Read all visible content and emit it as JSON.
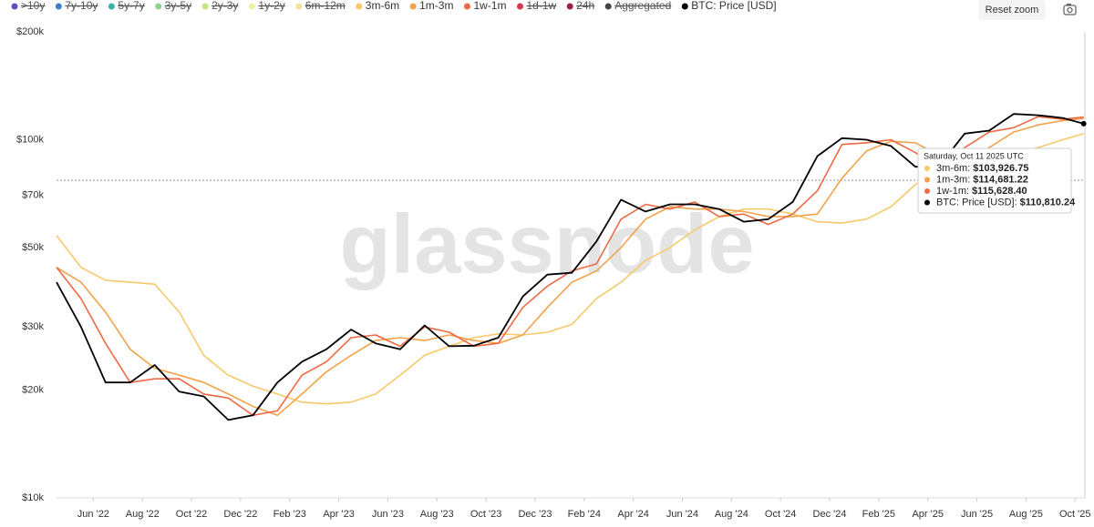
{
  "reset_zoom": "Reset zoom",
  "watermark": "glassnode",
  "chart_data": {
    "type": "line",
    "log_scale": true,
    "grid": false,
    "x": [
      3.5,
      4.5,
      5.5,
      6.5,
      7.5,
      8.5,
      9.5,
      10.5,
      11.5,
      12.5,
      13.5,
      14.5,
      15.5,
      16.5,
      17.5,
      18.5,
      19.5,
      20.5,
      21.5,
      22.5,
      23.5,
      24.5,
      25.5,
      26.5,
      27.5,
      28.5,
      29.5,
      30.5,
      31.5,
      32.5,
      33.5,
      34.5,
      35.5,
      36.5,
      37.5,
      38.5,
      39.5,
      40.5,
      41.5,
      42.5,
      43.5,
      44.5,
      45.35
    ],
    "xlim": [
      3.5,
      45.4
    ],
    "xticks": [
      {
        "value": 5,
        "label": "Jun '22"
      },
      {
        "value": 7,
        "label": "Aug '22"
      },
      {
        "value": 9,
        "label": "Oct '22"
      },
      {
        "value": 11,
        "label": "Dec '22"
      },
      {
        "value": 13,
        "label": "Feb '23"
      },
      {
        "value": 15,
        "label": "Apr '23"
      },
      {
        "value": 17,
        "label": "Jun '23"
      },
      {
        "value": 19,
        "label": "Aug '23"
      },
      {
        "value": 21,
        "label": "Oct '23"
      },
      {
        "value": 23,
        "label": "Dec '23"
      },
      {
        "value": 25,
        "label": "Feb '24"
      },
      {
        "value": 27,
        "label": "Apr '24"
      },
      {
        "value": 29,
        "label": "Jun '24"
      },
      {
        "value": 31,
        "label": "Aug '24"
      },
      {
        "value": 33,
        "label": "Oct '24"
      },
      {
        "value": 35,
        "label": "Dec '24"
      },
      {
        "value": 37,
        "label": "Feb '25"
      },
      {
        "value": 39,
        "label": "Apr '25"
      },
      {
        "value": 41,
        "label": "Jun '25"
      },
      {
        "value": 43,
        "label": "Aug '25"
      },
      {
        "value": 45,
        "label": "Oct '25"
      }
    ],
    "ylim": [
      10000,
      200000
    ],
    "yticks": [
      {
        "value": 10000,
        "label": "$10k"
      },
      {
        "value": 20000,
        "label": "$20k"
      },
      {
        "value": 30000,
        "label": "$30k"
      },
      {
        "value": 50000,
        "label": "$50k"
      },
      {
        "value": 70000,
        "label": "$70k"
      },
      {
        "value": 100000,
        "label": "$100k"
      },
      {
        "value": 200000,
        "label": "$200k"
      }
    ],
    "series": [
      {
        "name": ">10y",
        "color": "#5b4fc4",
        "hidden": true
      },
      {
        "name": "7y-10y",
        "color": "#3f7fc9",
        "hidden": true
      },
      {
        "name": "5y-7y",
        "color": "#3bb3a4",
        "hidden": true
      },
      {
        "name": "3y-5y",
        "color": "#8fd48e",
        "hidden": true
      },
      {
        "name": "2y-3y",
        "color": "#c6e77f",
        "hidden": true
      },
      {
        "name": "1y-2y",
        "color": "#eef0a0",
        "hidden": true
      },
      {
        "name": "6m-12m",
        "color": "#f7e29a",
        "hidden": true
      },
      {
        "name": "3m-6m",
        "color": "#f7c96a",
        "hidden": false,
        "values": [
          54000,
          44000,
          40500,
          40000,
          39500,
          33000,
          25000,
          22000,
          20500,
          19500,
          18500,
          18300,
          18500,
          19500,
          22000,
          25000,
          26500,
          28000,
          28700,
          28500,
          29000,
          30500,
          36000,
          40000,
          46000,
          50000,
          56000,
          61000,
          64000,
          64000,
          62000,
          59000,
          58500,
          60000,
          65000,
          75000,
          82000,
          88000,
          90000,
          92000,
          95000,
          100000,
          103926.75
        ]
      },
      {
        "name": "1m-3m",
        "color": "#f2a24a",
        "hidden": false,
        "values": [
          44000,
          40000,
          33000,
          26000,
          23000,
          22000,
          21000,
          19500,
          18000,
          17000,
          19500,
          22500,
          25000,
          27500,
          28000,
          27500,
          28500,
          27500,
          27000,
          28500,
          34000,
          40000,
          43000,
          50000,
          60000,
          65000,
          64000,
          64000,
          63000,
          61000,
          61000,
          62000,
          78000,
          93000,
          99000,
          98000,
          90000,
          85000,
          95000,
          105000,
          110000,
          113000,
          114681.22
        ]
      },
      {
        "name": "1w-1m",
        "color": "#ee6a44",
        "hidden": false,
        "values": [
          44000,
          36000,
          27000,
          21000,
          21500,
          21500,
          19500,
          19000,
          17000,
          17500,
          22000,
          24000,
          28000,
          28500,
          26500,
          30000,
          29000,
          26500,
          27000,
          34000,
          39000,
          43000,
          45000,
          60000,
          66000,
          64000,
          67000,
          61000,
          62000,
          58000,
          62000,
          72000,
          97000,
          98000,
          100000,
          92000,
          83000,
          95000,
          105000,
          108000,
          116000,
          114000,
          115628.4
        ]
      },
      {
        "name": "1d-1w",
        "color": "#d9354f",
        "hidden": true
      },
      {
        "name": "24h",
        "color": "#9a1f4a",
        "hidden": true
      },
      {
        "name": "Aggregated",
        "color": "#444444",
        "hidden": true
      },
      {
        "name": "BTC: Price [USD]",
        "color": "#000000",
        "hidden": false,
        "values": [
          40000,
          30000,
          21000,
          21000,
          23500,
          19800,
          19200,
          16500,
          17000,
          21000,
          24000,
          26000,
          29500,
          27000,
          26000,
          30300,
          26500,
          26600,
          28000,
          36500,
          42000,
          42500,
          52000,
          68000,
          63000,
          66000,
          66000,
          64000,
          59000,
          60000,
          67000,
          90000,
          101000,
          100000,
          96000,
          84000,
          85000,
          104000,
          106000,
          118000,
          117000,
          115000,
          110810.24
        ]
      }
    ],
    "tooltip": {
      "date": "Saturday, Oct 11 2025 UTC",
      "items": [
        {
          "label": "3m-6m:",
          "color": "#f7c96a",
          "value": 103926.75,
          "value_label": "$103,926.75"
        },
        {
          "label": "1m-3m:",
          "color": "#f2a24a",
          "value": 114681.22,
          "value_label": "$114,681.22"
        },
        {
          "label": "1w-1m:",
          "color": "#ee6a44",
          "value": 115628.4,
          "value_label": "$115,628.40"
        },
        {
          "label": "BTC: Price [USD]:",
          "color": "#000000",
          "value": 110810.24,
          "value_label": "$110,810.24"
        }
      ]
    }
  }
}
